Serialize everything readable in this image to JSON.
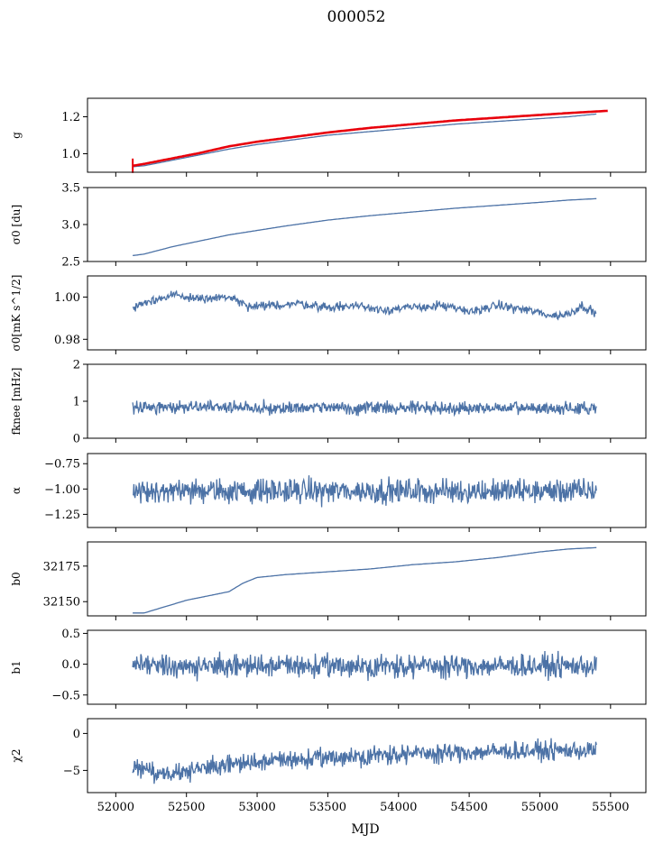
{
  "figure": {
    "title": "000052",
    "xlabel": "MJD",
    "colors": {
      "series": "#4c72a6",
      "fit": "#e8000b",
      "axis": "#000000"
    }
  },
  "chart_data": [
    {
      "type": "line",
      "ylabel": "g",
      "xlim": [
        51800,
        55750
      ],
      "ylim": [
        0.9,
        1.3
      ],
      "yticks": [
        1.0,
        1.2
      ],
      "ytick_labels": [
        "1.0",
        "1.2"
      ],
      "series": [
        {
          "kind": "curve",
          "color": "#4c72a6",
          "x": [
            52120,
            52200,
            52400,
            52600,
            52800,
            53000,
            53200,
            53500,
            53800,
            54100,
            54400,
            54700,
            55000,
            55200,
            55400
          ],
          "y": [
            0.93,
            0.935,
            0.965,
            0.995,
            1.025,
            1.05,
            1.07,
            1.1,
            1.12,
            1.14,
            1.16,
            1.175,
            1.19,
            1.2,
            1.215
          ]
        },
        {
          "kind": "curve",
          "color": "#e8000b",
          "x": [
            52120,
            52200,
            52400,
            52600,
            52800,
            53000,
            53200,
            53500,
            53800,
            54100,
            54400,
            54700,
            55000,
            55200,
            55480
          ],
          "y": [
            0.935,
            0.945,
            0.975,
            1.005,
            1.04,
            1.065,
            1.085,
            1.115,
            1.14,
            1.16,
            1.18,
            1.195,
            1.21,
            1.22,
            1.232
          ]
        }
      ]
    },
    {
      "type": "line",
      "ylabel": "σ0 [du]",
      "xlim": [
        51800,
        55750
      ],
      "ylim": [
        2.5,
        3.5
      ],
      "yticks": [
        2.5,
        3.0,
        3.5
      ],
      "ytick_labels": [
        "2.5",
        "3.0",
        "3.5"
      ],
      "series": [
        {
          "kind": "curve",
          "color": "#4c72a6",
          "x": [
            52120,
            52200,
            52400,
            52600,
            52800,
            53000,
            53200,
            53500,
            53800,
            54100,
            54400,
            54700,
            55000,
            55200,
            55400
          ],
          "y": [
            2.58,
            2.6,
            2.7,
            2.78,
            2.86,
            2.92,
            2.98,
            3.06,
            3.12,
            3.17,
            3.22,
            3.26,
            3.3,
            3.33,
            3.35
          ]
        }
      ]
    },
    {
      "type": "line",
      "ylabel": "σ0[mK s^1/2]",
      "xlim": [
        51800,
        55750
      ],
      "ylim": [
        0.975,
        1.01
      ],
      "yticks": [
        0.98,
        1.0
      ],
      "ytick_labels": [
        "0.98",
        "1.00"
      ],
      "series": [
        {
          "kind": "noise",
          "color": "#4c72a6",
          "x0": 52120,
          "x1": 55400,
          "n": 700,
          "seed": 3,
          "amp": 0.0015,
          "x": [
            52120,
            52250,
            52400,
            52600,
            52800,
            52950,
            53100,
            53300,
            53500,
            53700,
            53900,
            54100,
            54300,
            54500,
            54700,
            54900,
            55100,
            55200,
            55300,
            55400
          ],
          "y": [
            0.995,
            0.998,
            1.001,
            0.999,
            1.0,
            0.995,
            0.996,
            0.997,
            0.995,
            0.996,
            0.994,
            0.995,
            0.996,
            0.993,
            0.996,
            0.994,
            0.991,
            0.992,
            0.996,
            0.992
          ]
        }
      ]
    },
    {
      "type": "line",
      "ylabel": "fknee [mHz]",
      "xlim": [
        51800,
        55750
      ],
      "ylim": [
        0,
        2
      ],
      "yticks": [
        0,
        1,
        2
      ],
      "ytick_labels": [
        "0",
        "1",
        "2"
      ],
      "series": [
        {
          "kind": "noise",
          "color": "#4c72a6",
          "x0": 52120,
          "x1": 55400,
          "n": 800,
          "seed": 11,
          "amp": 0.12,
          "x": [
            52120,
            55400
          ],
          "y": [
            0.85,
            0.8
          ]
        }
      ]
    },
    {
      "type": "line",
      "ylabel": "α",
      "xlim": [
        51800,
        55750
      ],
      "ylim": [
        -1.38,
        -0.65
      ],
      "yticks": [
        -1.25,
        -1.0,
        -0.75
      ],
      "ytick_labels": [
        "−1.25",
        "−1.00",
        "−0.75"
      ],
      "series": [
        {
          "kind": "noise",
          "color": "#4c72a6",
          "x0": 52120,
          "x1": 55400,
          "n": 800,
          "seed": 23,
          "amp": 0.085,
          "x": [
            52120,
            55400
          ],
          "y": [
            -1.02,
            -1.02
          ]
        }
      ]
    },
    {
      "type": "line",
      "ylabel": "b0",
      "xlim": [
        51800,
        55750
      ],
      "ylim": [
        32140,
        32192
      ],
      "yticks": [
        32150,
        32175
      ],
      "ytick_labels": [
        "32150",
        "32175"
      ],
      "series": [
        {
          "kind": "curve",
          "color": "#4c72a6",
          "x": [
            52120,
            52200,
            52300,
            52500,
            52700,
            52800,
            52900,
            53000,
            53200,
            53500,
            53800,
            54100,
            54400,
            54700,
            55000,
            55200,
            55400
          ],
          "y": [
            32142,
            32142,
            32145,
            32151,
            32155,
            32157,
            32163,
            32167,
            32169,
            32171,
            32173,
            32176,
            32178,
            32181,
            32185,
            32187,
            32188
          ]
        }
      ]
    },
    {
      "type": "line",
      "ylabel": "b1",
      "xlim": [
        51800,
        55750
      ],
      "ylim": [
        -0.65,
        0.55
      ],
      "yticks": [
        -0.5,
        0.0,
        0.5
      ],
      "ytick_labels": [
        "−0.5",
        "0.0",
        "0.5"
      ],
      "series": [
        {
          "kind": "noise",
          "color": "#4c72a6",
          "x0": 52120,
          "x1": 55400,
          "n": 800,
          "seed": 37,
          "amp": 0.13,
          "x": [
            52120,
            55400
          ],
          "y": [
            -0.03,
            -0.03
          ]
        }
      ]
    },
    {
      "type": "line",
      "ylabel": "χ2",
      "xlim": [
        51800,
        55750
      ],
      "ylim": [
        -8,
        2
      ],
      "yticks": [
        -5,
        0
      ],
      "ytick_labels": [
        "−5",
        "0"
      ],
      "xticks": [
        52000,
        52500,
        53000,
        53500,
        54000,
        54500,
        55000,
        55500
      ],
      "xtick_labels": [
        "52000",
        "52500",
        "53000",
        "53500",
        "54000",
        "54500",
        "55000",
        "55500"
      ],
      "series": [
        {
          "kind": "noise",
          "color": "#4c72a6",
          "x0": 52120,
          "x1": 55400,
          "n": 800,
          "seed": 51,
          "amp": 0.9,
          "x": [
            52120,
            52300,
            52500,
            52800,
            53200,
            53600,
            54000,
            54400,
            54800,
            55200,
            55400
          ],
          "y": [
            -4.5,
            -5.8,
            -5.0,
            -4.2,
            -3.6,
            -3.2,
            -2.8,
            -2.6,
            -2.4,
            -2.3,
            -2.3
          ]
        }
      ]
    }
  ]
}
